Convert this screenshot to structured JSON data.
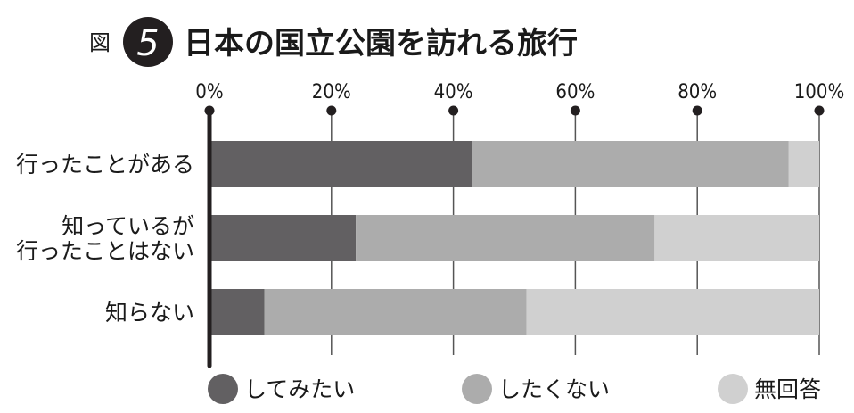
{
  "figure": {
    "prefix": "図",
    "number": "5",
    "title": "日本の国立公園を訪れる旅行"
  },
  "colors": {
    "series": [
      "#626062",
      "#acacac",
      "#d0d0d0"
    ],
    "axis": "#231f20",
    "grid": "#555555",
    "badge": "#231f20"
  },
  "chart_data": {
    "type": "bar",
    "orientation": "horizontal",
    "stacked": true,
    "title": "日本の国立公園を訪れる旅行",
    "xlabel": "",
    "ylabel": "",
    "xlim": [
      0,
      100
    ],
    "ticks": [
      "0%",
      "20%",
      "40%",
      "60%",
      "80%",
      "100%"
    ],
    "tick_values": [
      0,
      20,
      40,
      60,
      80,
      100
    ],
    "grid": true,
    "legend_position": "bottom",
    "categories": [
      [
        "行ったことがある"
      ],
      [
        "知っているが",
        "行ったことはない"
      ],
      [
        "知らない"
      ]
    ],
    "series": [
      {
        "name": "してみたい",
        "values": [
          43,
          24,
          9
        ]
      },
      {
        "name": "したくない",
        "values": [
          52,
          49,
          43
        ]
      },
      {
        "name": "無回答",
        "values": [
          5,
          27,
          48
        ]
      }
    ]
  }
}
